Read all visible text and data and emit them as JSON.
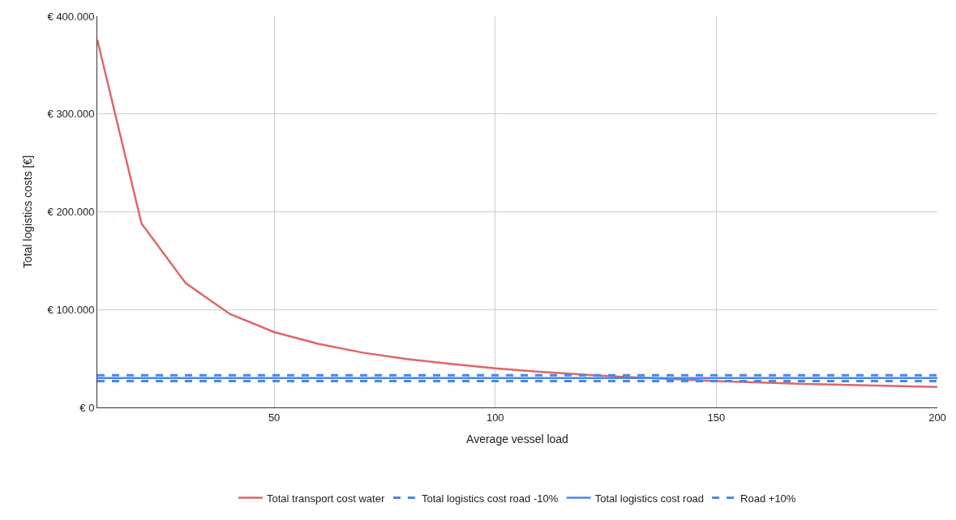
{
  "chart_data": {
    "type": "line",
    "xlabel": "Average vessel load",
    "ylabel": "Total logistics costs [€]",
    "x": [
      10,
      20,
      30,
      40,
      50,
      60,
      70,
      80,
      90,
      100,
      110,
      120,
      130,
      140,
      150,
      160,
      170,
      180,
      190,
      200
    ],
    "series": [
      {
        "name": "Total transport cost water",
        "color": "#e06666",
        "line_style": "solid",
        "values": [
          376000,
          188000,
          127000,
          95500,
          77000,
          65000,
          56000,
          49500,
          44500,
          40000,
          36500,
          33500,
          31000,
          29000,
          27000,
          25500,
          24000,
          23000,
          22000,
          21000
        ]
      },
      {
        "name": "Total logistics cost road -10%",
        "color": "#4a86e8",
        "line_style": "dashed",
        "values": [
          27000,
          27000,
          27000,
          27000,
          27000,
          27000,
          27000,
          27000,
          27000,
          27000,
          27000,
          27000,
          27000,
          27000,
          27000,
          27000,
          27000,
          27000,
          27000,
          27000
        ]
      },
      {
        "name": "Total logistics cost road",
        "color": "#4a86e8",
        "line_style": "solid",
        "values": [
          30000,
          30000,
          30000,
          30000,
          30000,
          30000,
          30000,
          30000,
          30000,
          30000,
          30000,
          30000,
          30000,
          30000,
          30000,
          30000,
          30000,
          30000,
          30000,
          30000
        ]
      },
      {
        "name": "Road +10%",
        "color": "#4a86e8",
        "line_style": "dashed",
        "values": [
          33000,
          33000,
          33000,
          33000,
          33000,
          33000,
          33000,
          33000,
          33000,
          33000,
          33000,
          33000,
          33000,
          33000,
          33000,
          33000,
          33000,
          33000,
          33000,
          33000
        ]
      }
    ],
    "xlim": [
      10,
      200
    ],
    "xticks": [
      50,
      100,
      150,
      200
    ],
    "ylim": [
      0,
      400000
    ],
    "yticks": [
      {
        "value": 0,
        "label": "€ 0"
      },
      {
        "value": 100000,
        "label": "€ 100.000"
      },
      {
        "value": 200000,
        "label": "€ 200.000"
      },
      {
        "value": 300000,
        "label": "€ 300.000"
      },
      {
        "value": 400000,
        "label": "€ 400.000"
      }
    ],
    "grid": true,
    "legend": "bottom",
    "marker": "none"
  }
}
